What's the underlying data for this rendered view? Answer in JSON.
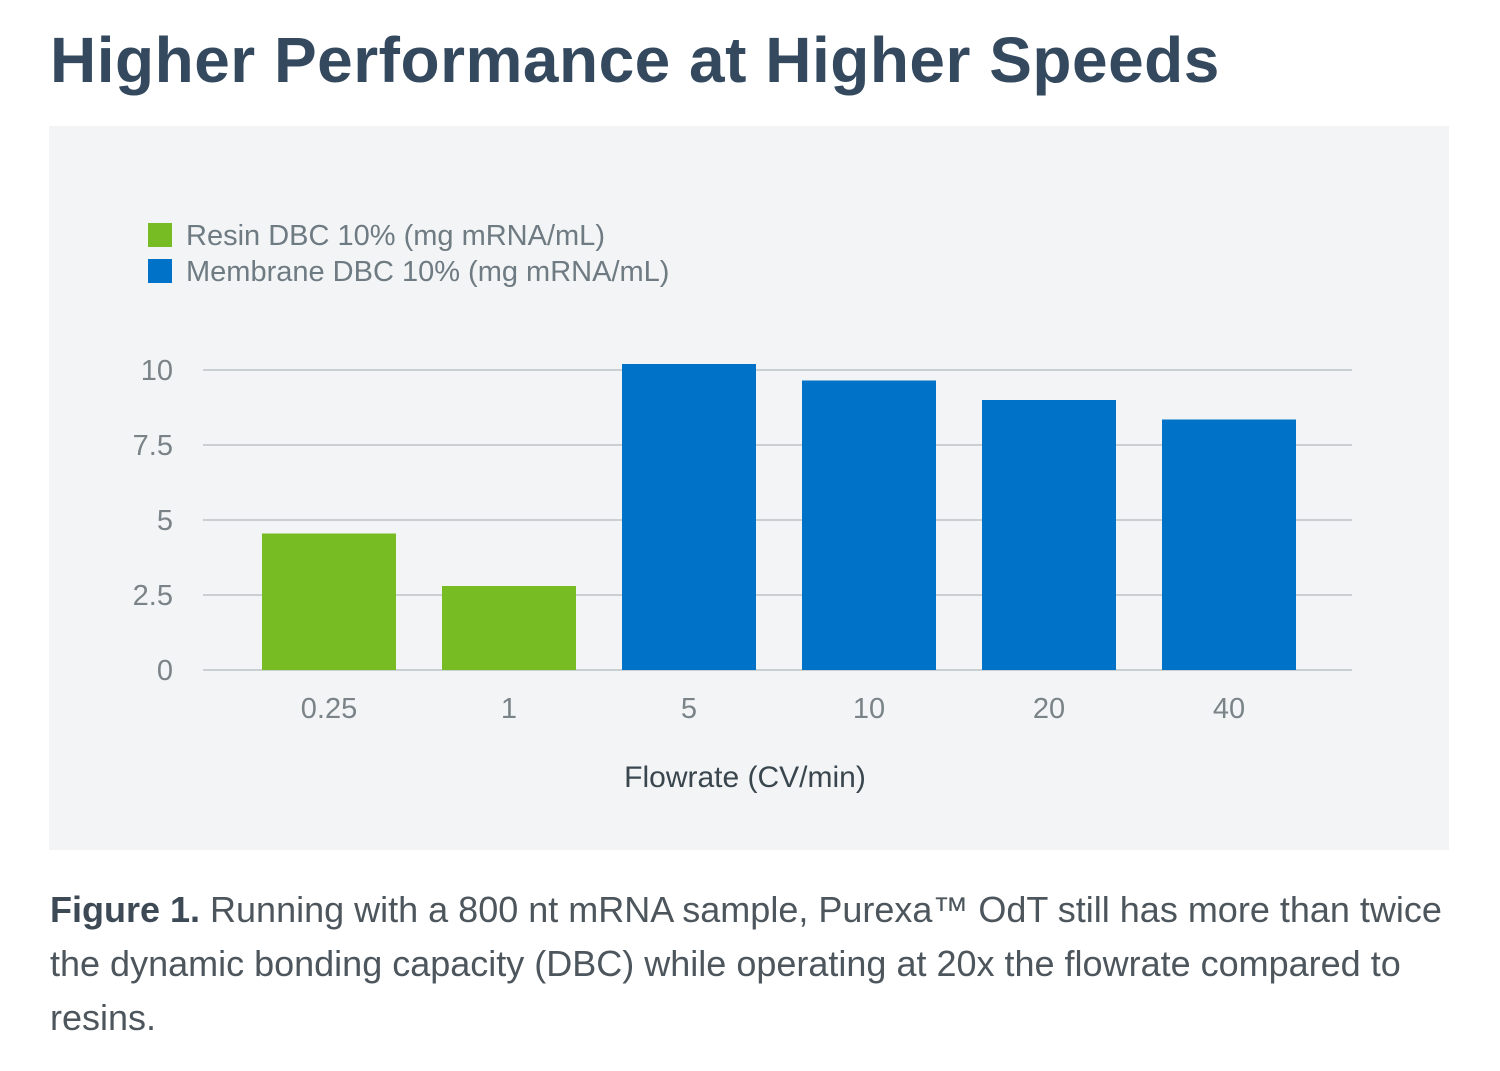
{
  "title": "Higher Performance at Higher Speeds",
  "colors": {
    "title": "#34495e",
    "panel_background": "#f2f4f5",
    "resin": "#77bc22",
    "membrane": "#0073c9",
    "grid": "#bcc3c7",
    "caption_text": "#4d565c"
  },
  "chart_data": {
    "type": "bar",
    "title": "",
    "xlabel": "Flowrate (CV/min)",
    "ylabel": "",
    "ylim": [
      0,
      10
    ],
    "yticks": [
      "0",
      "2.5",
      "5",
      "7.5",
      "10"
    ],
    "ytick_values": [
      0,
      2.5,
      5,
      7.5,
      10
    ],
    "grid": true,
    "legend_position": "top-left",
    "categories": [
      "0.25",
      "1",
      "5",
      "10",
      "20",
      "40"
    ],
    "series": [
      {
        "name": "Resin DBC 10% (mg mRNA/mL)",
        "color": "#77bc22",
        "values": [
          4.55,
          2.8,
          null,
          null,
          null,
          null
        ]
      },
      {
        "name": "Membrane DBC 10% (mg mRNA/mL)",
        "color": "#0073c9",
        "values": [
          null,
          null,
          10.2,
          9.65,
          9.0,
          8.35
        ]
      }
    ]
  },
  "caption": {
    "label": "Figure 1.",
    "text": " Running with a 800 nt mRNA sample, Purexa™ OdT still has more than twice the dynamic bonding capacity (DBC) while operating at 20x the flowrate compared to resins."
  }
}
